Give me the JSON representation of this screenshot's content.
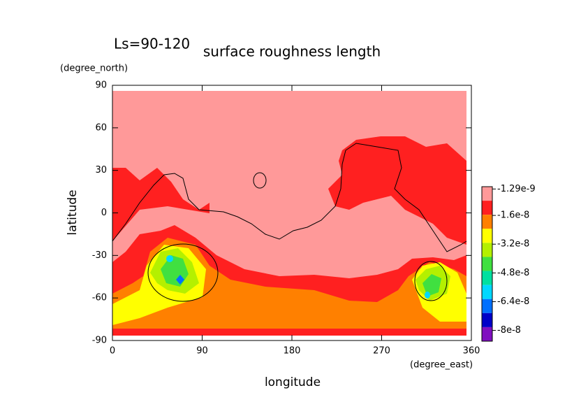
{
  "chart_data": {
    "type": "contour",
    "annotation": "Ls=90-120",
    "title": "surface roughness length",
    "x_label": "longitude",
    "x_unit": "(degree_east)",
    "y_label": "latitude",
    "y_unit": "(degree_north)",
    "xlim": [
      0,
      360
    ],
    "xticks": [
      0,
      90,
      180,
      270,
      360
    ],
    "ylim": [
      -90,
      90
    ],
    "yticks": [
      90,
      60,
      30,
      0,
      -30,
      -60,
      -90
    ],
    "colorbar": {
      "clim": [
        -8.6e-08,
        0
      ],
      "colors": [
        "#ff9999",
        "#ff2020",
        "#ff8000",
        "#ffff00",
        "#b4f000",
        "#40e040",
        "#00e0a0",
        "#00d8ff",
        "#0070ff",
        "#0000c8",
        "#8010c0"
      ],
      "ticks": [
        -1.29e-09,
        -1.6e-08,
        -3.2e-08,
        -4.8e-08,
        -6.4e-08,
        -8e-08
      ]
    }
  }
}
